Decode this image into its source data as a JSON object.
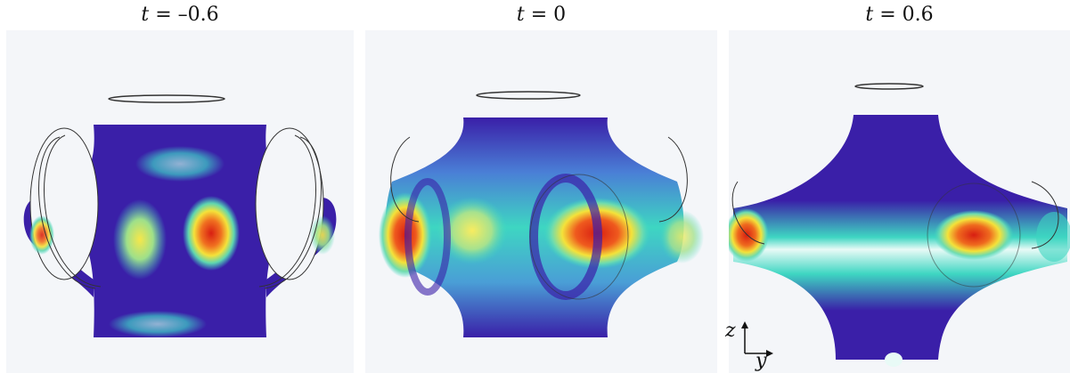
{
  "panels": [
    {
      "id": "p1",
      "title_var": "t",
      "title_rest": " = –0.6"
    },
    {
      "id": "p2",
      "title_var": "t",
      "title_rest": " = 0"
    },
    {
      "id": "p3",
      "title_var": "t",
      "title_rest": " = 0.6"
    }
  ],
  "axes": {
    "vertical": "z",
    "horizontal": "y"
  },
  "colors": {
    "low": "#3a1fa8",
    "mid": "#3ed6c2",
    "high": "#e0261b",
    "hot": "#f4e23a",
    "background": "#f4f6f9"
  }
}
